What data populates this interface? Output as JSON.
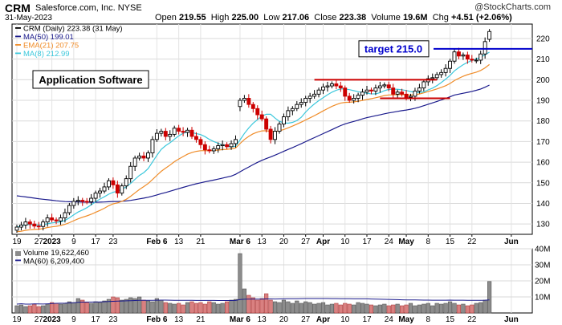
{
  "header": {
    "symbol": "CRM",
    "company": "Salesforce.com, Inc.  NYSE",
    "date": "31-May-2023",
    "open_label": "Open",
    "open": "219.55",
    "high_label": "High",
    "high": "225.00",
    "low_label": "Low",
    "low": "217.06",
    "close_label": "Close",
    "close": "223.38",
    "volume_label": "Volume",
    "volume": "19.6M",
    "chg_label": "Chg",
    "chg": "+4.51 (+2.06%)",
    "brand": "@StockCharts.com"
  },
  "price_panel": {
    "legend": [
      {
        "text": "CRM (Daily) 223.38 (31 May)",
        "color": "#000000"
      },
      {
        "text": "MA(50) 199.01",
        "color": "#1a1a8c"
      },
      {
        "text": "EMA(21) 207.75",
        "color": "#f08c28"
      },
      {
        "text": "MA(8) 212.99",
        "color": "#3cc8dc"
      }
    ],
    "annotation_box": "Application Software",
    "target_label": "target 215.0",
    "target_color": "#0000cc",
    "resistance_color": "#cc0000"
  },
  "volume_panel": {
    "legend": [
      {
        "text": "Volume 19,622,460",
        "color": "#000000"
      },
      {
        "text": "MA(60) 6,209,400",
        "color": "#1a1a8c"
      }
    ]
  },
  "chart_data": [
    {
      "type": "candlestick",
      "title": "CRM (Daily)",
      "y_ticks": [
        130,
        140,
        150,
        160,
        170,
        180,
        190,
        200,
        210,
        220
      ],
      "ylim": [
        125,
        227
      ],
      "x_tick_labels": [
        "19",
        "27",
        "2023",
        "9",
        "17",
        "23",
        "Feb 6",
        "13",
        "21",
        "Mar 6",
        "13",
        "20",
        "27",
        "Apr",
        "10",
        "17",
        "24",
        "May",
        "8",
        "15",
        "22",
        "Jun"
      ],
      "x_tick_indices": [
        0,
        5,
        8,
        13,
        18,
        22,
        32,
        37,
        42,
        51,
        56,
        61,
        66,
        70,
        75,
        80,
        85,
        89,
        94,
        99,
        104,
        113
      ],
      "close": [
        128.5,
        129.5,
        131,
        130,
        129,
        128.8,
        131,
        133,
        132,
        131.5,
        133,
        135.5,
        139,
        141,
        141.5,
        141,
        140.8,
        142.5,
        145,
        146,
        148,
        151,
        149,
        145,
        148.5,
        152,
        158,
        162,
        163,
        162,
        164.5,
        171,
        174,
        175,
        172.5,
        173.5,
        176.5,
        175,
        174.5,
        175.5,
        172.5,
        171,
        168.5,
        166,
        165.5,
        166.5,
        168,
        168.5,
        167.5,
        169,
        171,
        190,
        191,
        188,
        186,
        183,
        181,
        176,
        171,
        175,
        178.5,
        182,
        185,
        186,
        188,
        189,
        191,
        192,
        193,
        195,
        196.5,
        197,
        198,
        197,
        196,
        192,
        190,
        191,
        192.5,
        194,
        195,
        194.5,
        196,
        197,
        197.5,
        196,
        193,
        194,
        193,
        191.5,
        192,
        194.5,
        196,
        199,
        200.5,
        201,
        202.5,
        203.5,
        205.5,
        209,
        213.5,
        211.5,
        212,
        210,
        209.5,
        209.5,
        212.5,
        218.5,
        223.4
      ],
      "open": [
        127,
        128.5,
        129.5,
        131,
        130,
        129,
        128.8,
        131,
        133,
        132,
        131.5,
        133,
        135.5,
        139,
        141,
        141.5,
        141,
        140.8,
        142.5,
        145,
        146,
        148,
        151,
        149,
        145,
        148.5,
        152,
        158,
        162,
        163,
        162,
        164.5,
        171,
        174,
        175,
        172.5,
        173.5,
        176.5,
        175,
        174.5,
        175.5,
        172.5,
        171,
        168.5,
        166,
        165.5,
        166.5,
        168,
        168.5,
        167.5,
        169,
        187,
        190,
        191,
        188,
        186,
        183,
        181,
        176,
        171,
        175,
        178.5,
        182,
        185,
        186,
        188,
        189,
        191,
        192,
        193,
        195,
        196.5,
        197,
        198,
        197,
        196,
        192,
        190,
        191,
        192.5,
        194,
        195,
        194.5,
        196,
        197,
        197.5,
        196,
        193,
        194,
        193,
        191.5,
        192,
        194.5,
        196,
        199,
        200.5,
        201,
        202.5,
        203.5,
        205.5,
        209,
        213.5,
        211.5,
        212,
        210,
        209.5,
        209.5,
        212.5,
        219.6
      ],
      "volume_millions": [
        4.5,
        5,
        4,
        4.5,
        5.5,
        4,
        4.5,
        5.5,
        6.5,
        6,
        5.5,
        6,
        7,
        6.5,
        9,
        8,
        6.5,
        6,
        7,
        6.5,
        7.5,
        8.5,
        10,
        9.5,
        8,
        8.5,
        9.5,
        9,
        10,
        8,
        7.5,
        7,
        9,
        8,
        6.5,
        6,
        5.5,
        6,
        5,
        6.5,
        7,
        6,
        6.5,
        5.5,
        7,
        6.5,
        5.5,
        6,
        7,
        8,
        8.5,
        37,
        15,
        11,
        9.5,
        8,
        9,
        12,
        8,
        7,
        6.5,
        8,
        7,
        6,
        7.5,
        6,
        7,
        6.5,
        5.5,
        6,
        6.5,
        5,
        5.5,
        6,
        5,
        6,
        5.5,
        5,
        6.5,
        6,
        5.5,
        5,
        4.5,
        5,
        5.5,
        4.5,
        5,
        5.5,
        4.5,
        5,
        6,
        4.5,
        5,
        5.5,
        6,
        4.5,
        6,
        5.5,
        6,
        7,
        6,
        5,
        5.5,
        4.5,
        5,
        6,
        6.5,
        8,
        19.6
      ],
      "ma50_start": 150,
      "volume_axis": {
        "ticks": [
          "10M",
          "20M",
          "30M",
          "40M"
        ],
        "max": 40
      }
    }
  ]
}
